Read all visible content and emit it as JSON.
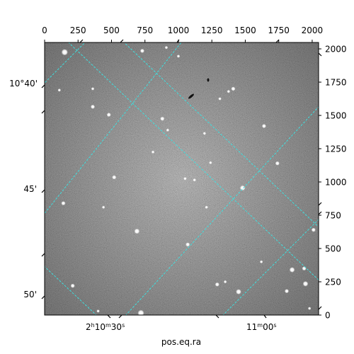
{
  "chart_data": {
    "type": "image",
    "xlabel": "pos.eq.ra",
    "ylabel": "",
    "pixel_axes": {
      "x_ticks": [
        0,
        250,
        500,
        750,
        1000,
        1250,
        1500,
        1750,
        2000
      ],
      "x_tick_labels": [
        "0",
        "250",
        "500",
        "750",
        "1000",
        "1250",
        "1500",
        "1750",
        "2000"
      ],
      "y_ticks": [
        0,
        250,
        500,
        750,
        1000,
        1250,
        1500,
        1750,
        2000
      ],
      "y_tick_labels": [
        "0",
        "250",
        "500",
        "750",
        "1000",
        "1250",
        "1500",
        "1750",
        "2000"
      ],
      "xlim": [
        0,
        2048
      ],
      "ylim": [
        0,
        2048
      ]
    },
    "world_axes": {
      "ra_ticks": [
        {
          "label_main": "2",
          "sup1": "h",
          "mid": "10",
          "sup2": "m",
          "end": "30",
          "sup3": "s"
        },
        {
          "label_main": "",
          "sup1": "",
          "mid": "11",
          "sup2": "m",
          "end": "00",
          "sup3": "s"
        }
      ],
      "dec_tick_labels": [
        "10°40'",
        "45'",
        "50'"
      ]
    },
    "grid": true,
    "colors": {
      "grid": "#3fe0e0",
      "image_base": "#7d7d7d"
    },
    "stars": [
      [
        150,
        1975,
        5
      ],
      [
        730,
        1985,
        3
      ],
      [
        910,
        2010,
        2
      ],
      [
        1410,
        1700,
        3
      ],
      [
        1375,
        1680,
        2
      ],
      [
        1310,
        1625,
        2
      ],
      [
        1640,
        1420,
        3
      ],
      [
        1195,
        1365,
        2
      ],
      [
        880,
        1475,
        3
      ],
      [
        920,
        1390,
        2
      ],
      [
        480,
        1505,
        3
      ],
      [
        360,
        1565,
        3
      ],
      [
        110,
        1690,
        2
      ],
      [
        360,
        1700,
        2
      ],
      [
        810,
        1225,
        2
      ],
      [
        1740,
        1140,
        3
      ],
      [
        1480,
        955,
        4
      ],
      [
        520,
        1035,
        3
      ],
      [
        1050,
        1025,
        2
      ],
      [
        1120,
        1015,
        2
      ],
      [
        140,
        840,
        3
      ],
      [
        440,
        810,
        2
      ],
      [
        1210,
        810,
        2
      ],
      [
        690,
        630,
        4
      ],
      [
        1070,
        530,
        3
      ],
      [
        2010,
        640,
        3
      ],
      [
        1850,
        340,
        4
      ],
      [
        1940,
        350,
        3
      ],
      [
        1620,
        400,
        2
      ],
      [
        1290,
        230,
        3
      ],
      [
        1450,
        175,
        4
      ],
      [
        1350,
        250,
        2
      ],
      [
        1810,
        180,
        3
      ],
      [
        1950,
        235,
        4
      ],
      [
        210,
        220,
        3
      ],
      [
        400,
        30,
        2
      ],
      [
        720,
        15,
        5
      ],
      [
        1980,
        50,
        2
      ],
      [
        1240,
        1145,
        2
      ],
      [
        1000,
        1945,
        2
      ]
    ]
  }
}
